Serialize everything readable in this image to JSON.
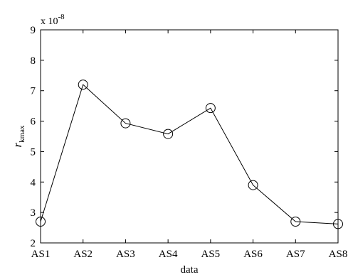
{
  "chart_data": {
    "type": "line",
    "categories": [
      "AS1",
      "AS2",
      "AS3",
      "AS4",
      "AS5",
      "AS6",
      "AS7",
      "AS8"
    ],
    "values": [
      2.7,
      7.2,
      5.93,
      5.58,
      6.43,
      3.9,
      2.7,
      2.62
    ],
    "xlabel": "data",
    "ylabel_main": "r",
    "ylabel_sub": "kmax",
    "ylim": [
      2,
      9
    ],
    "yticks": [
      2,
      3,
      4,
      5,
      6,
      7,
      8,
      9
    ],
    "exponent_base": "x 10",
    "exponent_power": "-8",
    "marker": "circle",
    "line_color": "#000000",
    "grid": false,
    "legend": "none"
  }
}
